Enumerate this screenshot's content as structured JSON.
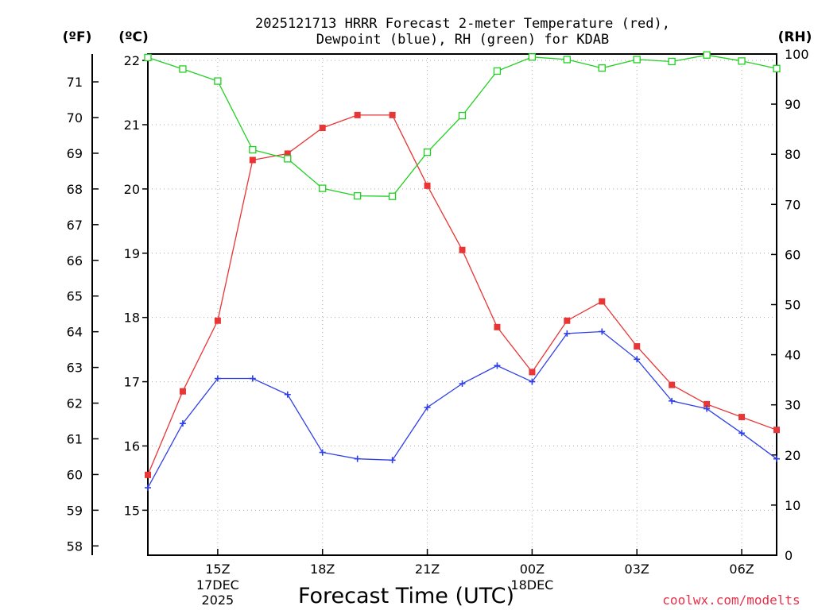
{
  "chart_data": {
    "type": "line",
    "title": [
      "2025121713 HRRR Forecast 2-meter Temperature (red),",
      "Dewpoint (blue), RH (green) for KDAB"
    ],
    "xlabel": "Forecast Time (UTC)",
    "credit": "coolwx.com/modelts",
    "unit_labels": {
      "fahrenheit": "(ºF)",
      "celsius": "(ºC)",
      "rh": "(RH)"
    },
    "x_hours": [
      13,
      14,
      15,
      16,
      17,
      18,
      19,
      20,
      21,
      22,
      23,
      24,
      25,
      26,
      27,
      28,
      29,
      30,
      31
    ],
    "x_ticks": [
      {
        "hour": 15,
        "label": "15Z",
        "sub": [
          "17DEC",
          "2025"
        ]
      },
      {
        "hour": 18,
        "label": "18Z",
        "sub": []
      },
      {
        "hour": 21,
        "label": "21Z",
        "sub": []
      },
      {
        "hour": 24,
        "label": "00Z",
        "sub": [
          "18DEC"
        ]
      },
      {
        "hour": 27,
        "label": "03Z",
        "sub": []
      },
      {
        "hour": 30,
        "label": "06Z",
        "sub": []
      }
    ],
    "celsius_axis": {
      "min": 14.3,
      "max": 22.1,
      "ticks": [
        15,
        16,
        17,
        18,
        19,
        20,
        21,
        22
      ]
    },
    "fahrenheit_axis": {
      "ticks": [
        58,
        59,
        60,
        61,
        62,
        63,
        64,
        65,
        66,
        67,
        68,
        69,
        70,
        71
      ]
    },
    "rh_axis": {
      "min": 0,
      "max": 100,
      "ticks": [
        0,
        10,
        20,
        30,
        40,
        50,
        60,
        70,
        80,
        90,
        100
      ]
    },
    "series": [
      {
        "name": "Temperature",
        "color": "#e83535",
        "marker": "filled-square",
        "axis": "celsius",
        "values": [
          15.55,
          16.85,
          17.95,
          20.45,
          20.55,
          20.95,
          21.15,
          21.15,
          20.05,
          19.05,
          17.85,
          17.15,
          17.95,
          18.25,
          17.55,
          16.95,
          16.65,
          16.45,
          16.25
        ]
      },
      {
        "name": "Dewpoint",
        "color": "#2f3fe8",
        "marker": "plus",
        "axis": "celsius",
        "values": [
          15.35,
          16.35,
          17.05,
          17.05,
          16.8,
          15.9,
          15.8,
          15.78,
          16.6,
          16.97,
          17.25,
          17.0,
          17.75,
          17.78,
          17.35,
          16.7,
          16.58,
          16.2,
          15.8
        ]
      },
      {
        "name": "RH",
        "color": "#20d020",
        "marker": "open-square",
        "axis": "rh",
        "values": [
          99.3,
          97.0,
          94.6,
          80.9,
          79.1,
          73.2,
          71.7,
          71.6,
          80.4,
          87.7,
          96.6,
          99.4,
          98.9,
          97.2,
          98.9,
          98.5,
          99.8,
          98.6,
          97.1
        ]
      }
    ]
  }
}
